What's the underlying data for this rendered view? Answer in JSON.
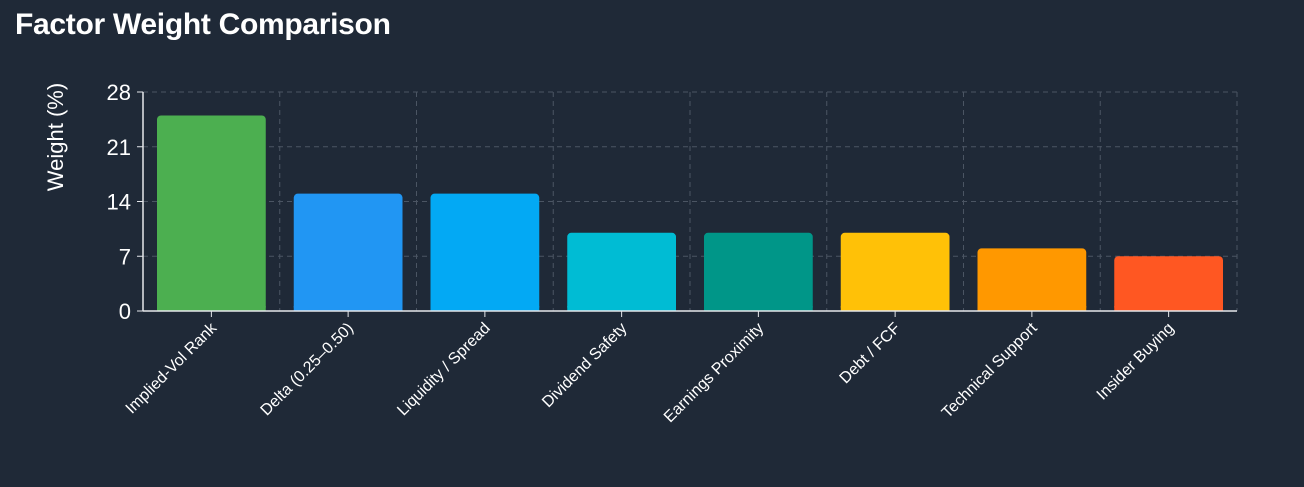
{
  "chart_data": {
    "type": "bar",
    "title": "Factor Weight Comparison",
    "xlabel": "",
    "ylabel": "Weight (%)",
    "ylim": [
      0,
      28
    ],
    "yticks": [
      0,
      7,
      14,
      21,
      28
    ],
    "grid": true,
    "categories": [
      "Implied-Vol Rank",
      "Delta (0.25–0.50)",
      "Liquidity / Spread",
      "Dividend Safety",
      "Earnings Proximity",
      "Debt / FCF",
      "Technical Support",
      "Insider Buying"
    ],
    "values": [
      25,
      15,
      15,
      10,
      10,
      10,
      8,
      7
    ],
    "colors": [
      "#4caf50",
      "#2196f3",
      "#03a9f4",
      "#00bcd4",
      "#009688",
      "#ffc107",
      "#ff9800",
      "#ff5722"
    ]
  }
}
